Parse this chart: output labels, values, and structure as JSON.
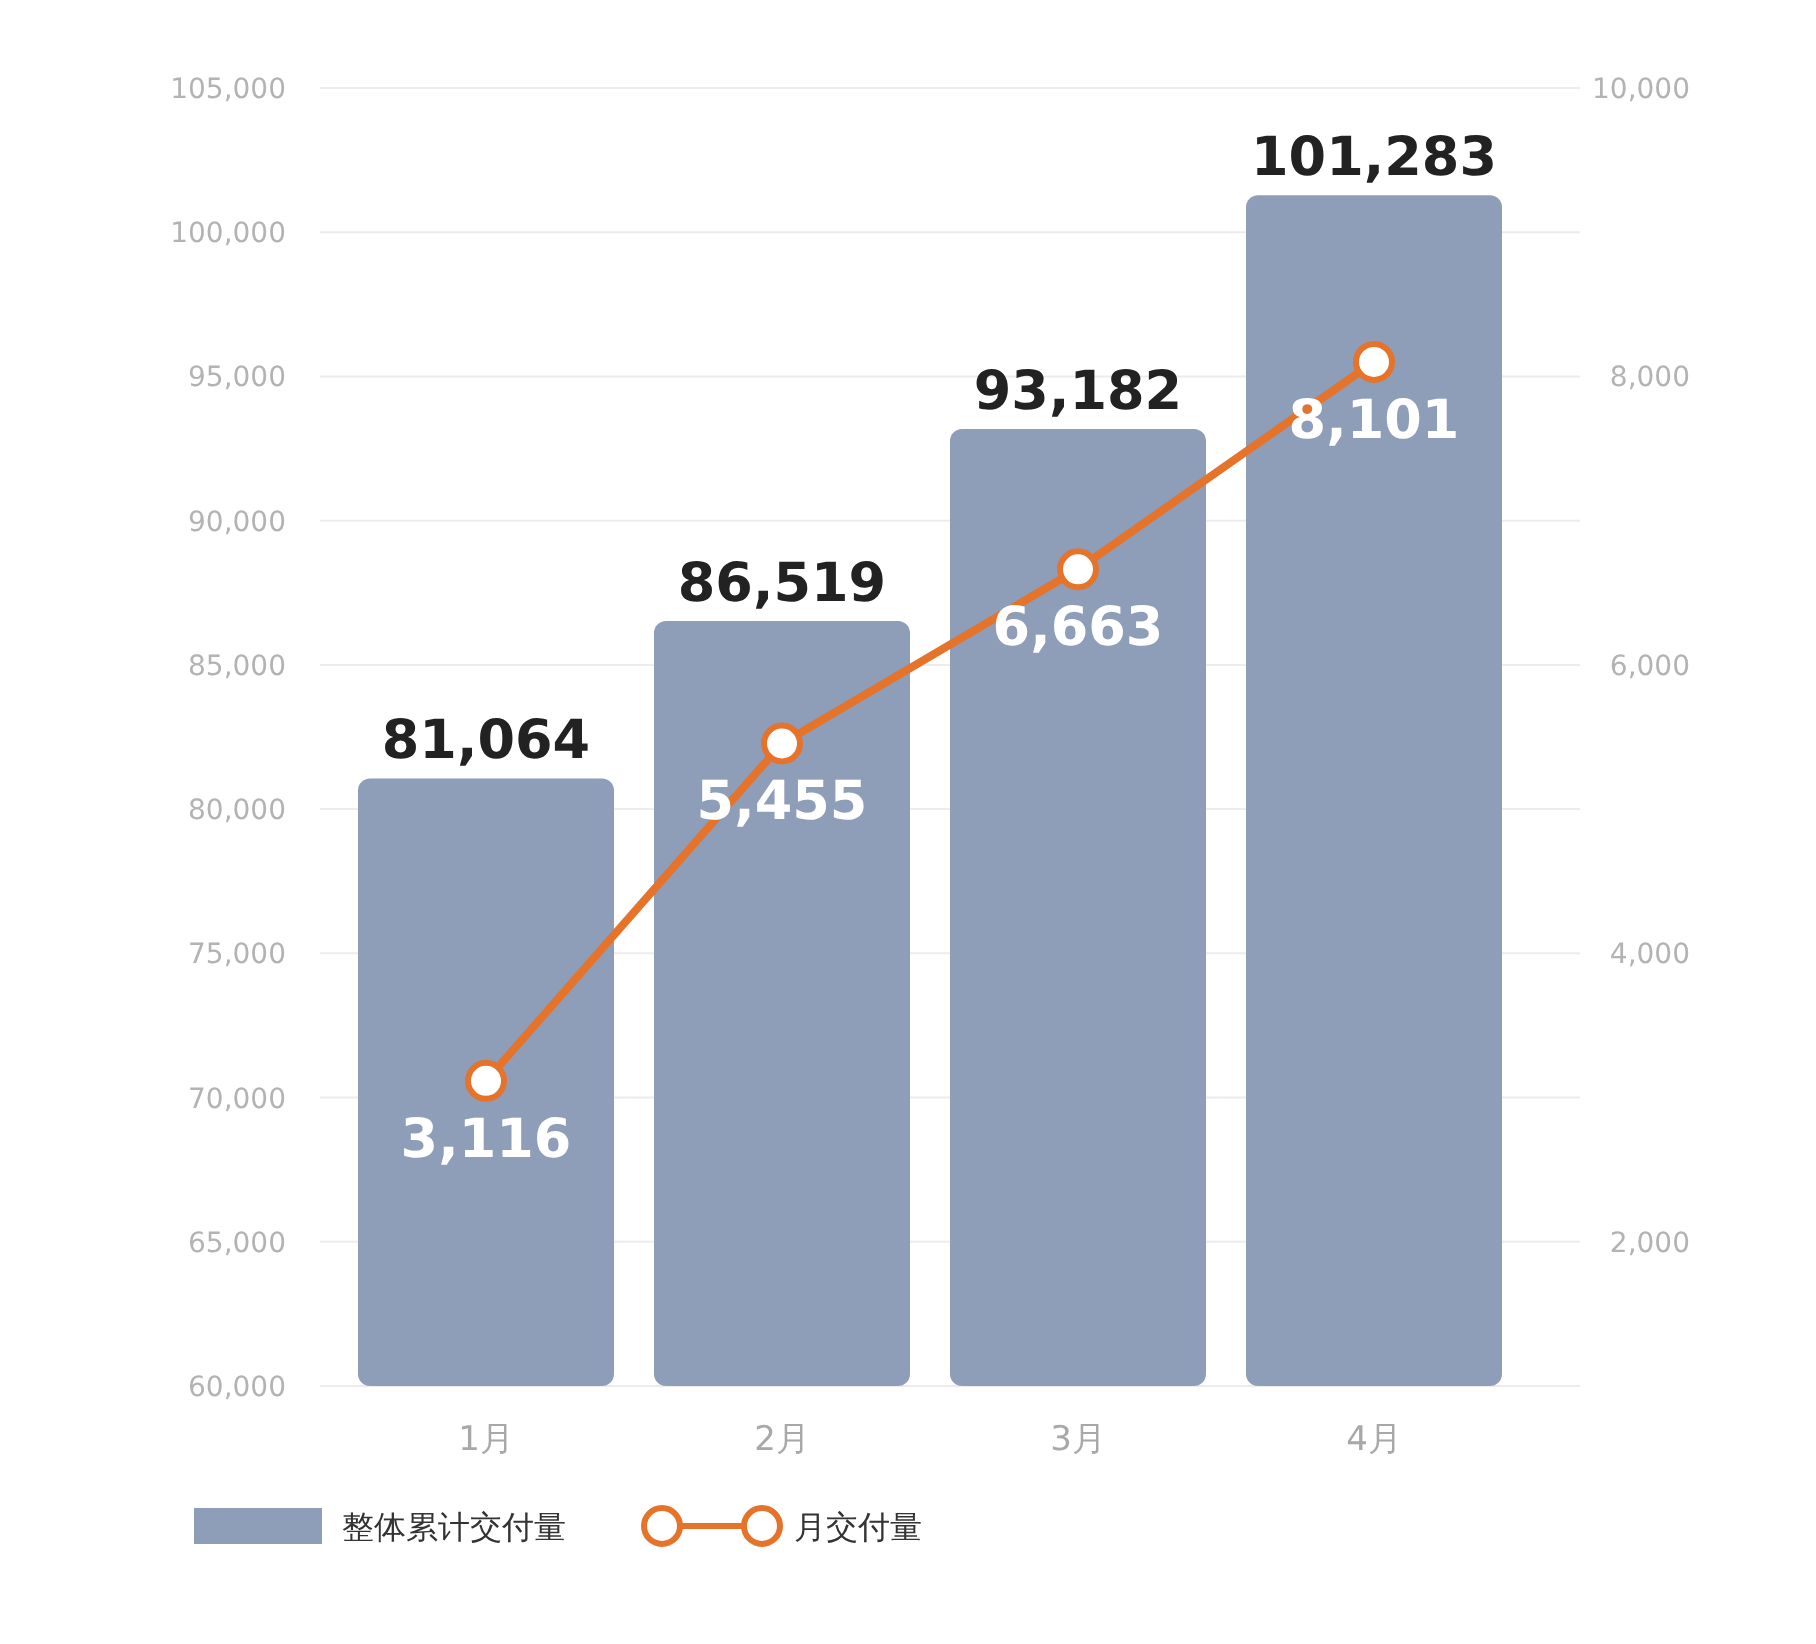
{
  "chart_data": {
    "type": "bar",
    "categories": [
      "1月",
      "2月",
      "3月",
      "4月"
    ],
    "series": [
      {
        "name": "整体累计交付量",
        "color": "#8e9db8",
        "values": [
          81064,
          86519,
          93182,
          101283
        ],
        "value_labels": [
          "81,064",
          "86,519",
          "93,182",
          "101,283"
        ]
      },
      {
        "name": "月交付量",
        "type": "line",
        "axis": "y2",
        "color": "#e5732a",
        "marker": "circle",
        "values": [
          3116,
          5455,
          6663,
          8101
        ],
        "value_labels": [
          "3,116",
          "5,455",
          "6,663",
          "8,101"
        ]
      }
    ],
    "ylim": [
      60000,
      105000
    ],
    "yticks": [
      {
        "value": 60000,
        "label": "60,000"
      },
      {
        "value": 65000,
        "label": "65,000"
      },
      {
        "value": 70000,
        "label": "70,000"
      },
      {
        "value": 75000,
        "label": "75,000"
      },
      {
        "value": 80000,
        "label": "80,000"
      },
      {
        "value": 85000,
        "label": "85,000"
      },
      {
        "value": 90000,
        "label": "90,000"
      },
      {
        "value": 95000,
        "label": "95,000"
      },
      {
        "value": 100000,
        "label": "100,000"
      },
      {
        "value": 105000,
        "label": "105,000"
      }
    ],
    "y2lim": [
      1000,
      10000
    ],
    "y2ticks": [
      {
        "value": 2000,
        "label": "2,000"
      },
      {
        "value": 4000,
        "label": "4,000"
      },
      {
        "value": 6000,
        "label": "6,000"
      },
      {
        "value": 8000,
        "label": "8,000"
      },
      {
        "value": 10000,
        "label": "10,000"
      }
    ],
    "grid": "y",
    "legend": "bottom left"
  }
}
